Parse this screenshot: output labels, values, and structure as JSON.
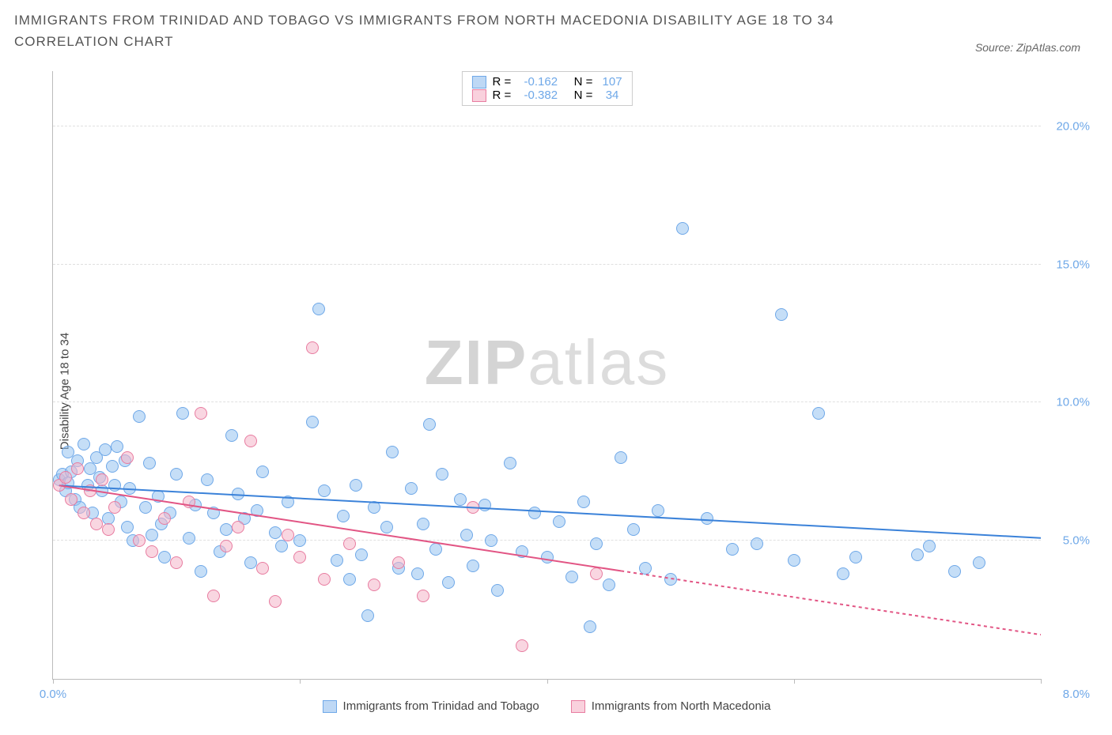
{
  "title": "IMMIGRANTS FROM TRINIDAD AND TOBAGO VS IMMIGRANTS FROM NORTH MACEDONIA DISABILITY AGE 18 TO 34 CORRELATION CHART",
  "source": "Source: ZipAtlas.com",
  "ylabel": "Disability Age 18 to 34",
  "watermark_bold": "ZIP",
  "watermark_light": "atlas",
  "chart": {
    "type": "scatter",
    "background_color": "#ffffff",
    "grid_color": "#e0e0e0",
    "axis_color": "#bbbbbb",
    "text_color": "#555555",
    "tick_label_color": "#6fa8e8",
    "xlim": [
      0,
      8
    ],
    "ylim": [
      0,
      22
    ],
    "xticks": [
      0,
      2,
      4,
      6,
      8
    ],
    "xtick_labels": [
      "0.0%",
      "",
      "",
      "",
      "8.0%"
    ],
    "yticks": [
      5,
      10,
      15,
      20
    ],
    "ytick_labels": [
      "5.0%",
      "10.0%",
      "15.0%",
      "20.0%"
    ],
    "point_radius": 8,
    "series": [
      {
        "name": "Immigrants from Trinidad and Tobago",
        "color_fill": "rgba(150,195,240,0.55)",
        "color_stroke": "#6fa8e8",
        "R": "-0.162",
        "N": "107",
        "trend": {
          "x1": 0.05,
          "y1": 7.0,
          "x2": 8.0,
          "y2": 5.1,
          "solid_to_x": 8.0,
          "color": "#3b82d9",
          "width": 2
        },
        "points": [
          [
            0.05,
            7.2
          ],
          [
            0.08,
            7.4
          ],
          [
            0.1,
            6.8
          ],
          [
            0.12,
            8.2
          ],
          [
            0.12,
            7.1
          ],
          [
            0.15,
            7.5
          ],
          [
            0.18,
            6.5
          ],
          [
            0.2,
            7.9
          ],
          [
            0.22,
            6.2
          ],
          [
            0.25,
            8.5
          ],
          [
            0.28,
            7.0
          ],
          [
            0.3,
            7.6
          ],
          [
            0.32,
            6.0
          ],
          [
            0.35,
            8.0
          ],
          [
            0.38,
            7.3
          ],
          [
            0.4,
            6.8
          ],
          [
            0.42,
            8.3
          ],
          [
            0.45,
            5.8
          ],
          [
            0.48,
            7.7
          ],
          [
            0.5,
            7.0
          ],
          [
            0.52,
            8.4
          ],
          [
            0.55,
            6.4
          ],
          [
            0.58,
            7.9
          ],
          [
            0.6,
            5.5
          ],
          [
            0.62,
            6.9
          ],
          [
            0.65,
            5.0
          ],
          [
            0.7,
            9.5
          ],
          [
            0.75,
            6.2
          ],
          [
            0.78,
            7.8
          ],
          [
            0.8,
            5.2
          ],
          [
            0.85,
            6.6
          ],
          [
            0.88,
            5.6
          ],
          [
            0.9,
            4.4
          ],
          [
            0.95,
            6.0
          ],
          [
            1.0,
            7.4
          ],
          [
            1.05,
            9.6
          ],
          [
            1.1,
            5.1
          ],
          [
            1.15,
            6.3
          ],
          [
            1.2,
            3.9
          ],
          [
            1.25,
            7.2
          ],
          [
            1.3,
            6.0
          ],
          [
            1.35,
            4.6
          ],
          [
            1.4,
            5.4
          ],
          [
            1.45,
            8.8
          ],
          [
            1.5,
            6.7
          ],
          [
            1.55,
            5.8
          ],
          [
            1.6,
            4.2
          ],
          [
            1.65,
            6.1
          ],
          [
            1.7,
            7.5
          ],
          [
            1.8,
            5.3
          ],
          [
            1.85,
            4.8
          ],
          [
            1.9,
            6.4
          ],
          [
            2.0,
            5.0
          ],
          [
            2.1,
            9.3
          ],
          [
            2.15,
            13.4
          ],
          [
            2.2,
            6.8
          ],
          [
            2.3,
            4.3
          ],
          [
            2.35,
            5.9
          ],
          [
            2.4,
            3.6
          ],
          [
            2.45,
            7.0
          ],
          [
            2.5,
            4.5
          ],
          [
            2.55,
            2.3
          ],
          [
            2.6,
            6.2
          ],
          [
            2.7,
            5.5
          ],
          [
            2.75,
            8.2
          ],
          [
            2.8,
            4.0
          ],
          [
            2.9,
            6.9
          ],
          [
            2.95,
            3.8
          ],
          [
            3.0,
            5.6
          ],
          [
            3.05,
            9.2
          ],
          [
            3.1,
            4.7
          ],
          [
            3.15,
            7.4
          ],
          [
            3.2,
            3.5
          ],
          [
            3.3,
            6.5
          ],
          [
            3.35,
            5.2
          ],
          [
            3.4,
            4.1
          ],
          [
            3.5,
            6.3
          ],
          [
            3.55,
            5.0
          ],
          [
            3.6,
            3.2
          ],
          [
            3.7,
            7.8
          ],
          [
            3.8,
            4.6
          ],
          [
            3.9,
            6.0
          ],
          [
            4.0,
            4.4
          ],
          [
            4.1,
            5.7
          ],
          [
            4.2,
            3.7
          ],
          [
            4.3,
            6.4
          ],
          [
            4.35,
            1.9
          ],
          [
            4.4,
            4.9
          ],
          [
            4.5,
            3.4
          ],
          [
            4.6,
            8.0
          ],
          [
            4.7,
            5.4
          ],
          [
            4.8,
            4.0
          ],
          [
            4.9,
            6.1
          ],
          [
            5.0,
            3.6
          ],
          [
            5.1,
            16.3
          ],
          [
            5.3,
            5.8
          ],
          [
            5.5,
            4.7
          ],
          [
            5.7,
            4.9
          ],
          [
            5.9,
            13.2
          ],
          [
            6.0,
            4.3
          ],
          [
            6.2,
            9.6
          ],
          [
            6.4,
            3.8
          ],
          [
            6.5,
            4.4
          ],
          [
            7.0,
            4.5
          ],
          [
            7.1,
            4.8
          ],
          [
            7.3,
            3.9
          ],
          [
            7.5,
            4.2
          ]
        ]
      },
      {
        "name": "Immigrants from North Macedonia",
        "color_fill": "rgba(244,180,200,0.55)",
        "color_stroke": "#e87ca0",
        "R": "-0.382",
        "N": "34",
        "trend": {
          "x1": 0.05,
          "y1": 7.0,
          "x2": 8.0,
          "y2": 1.6,
          "solid_to_x": 4.6,
          "color": "#e25584",
          "width": 2
        },
        "points": [
          [
            0.05,
            7.0
          ],
          [
            0.1,
            7.3
          ],
          [
            0.15,
            6.5
          ],
          [
            0.2,
            7.6
          ],
          [
            0.25,
            6.0
          ],
          [
            0.3,
            6.8
          ],
          [
            0.35,
            5.6
          ],
          [
            0.4,
            7.2
          ],
          [
            0.45,
            5.4
          ],
          [
            0.5,
            6.2
          ],
          [
            0.6,
            8.0
          ],
          [
            0.7,
            5.0
          ],
          [
            0.8,
            4.6
          ],
          [
            0.9,
            5.8
          ],
          [
            1.0,
            4.2
          ],
          [
            1.1,
            6.4
          ],
          [
            1.2,
            9.6
          ],
          [
            1.3,
            3.0
          ],
          [
            1.4,
            4.8
          ],
          [
            1.5,
            5.5
          ],
          [
            1.6,
            8.6
          ],
          [
            1.7,
            4.0
          ],
          [
            1.8,
            2.8
          ],
          [
            1.9,
            5.2
          ],
          [
            2.0,
            4.4
          ],
          [
            2.1,
            12.0
          ],
          [
            2.2,
            3.6
          ],
          [
            2.4,
            4.9
          ],
          [
            2.6,
            3.4
          ],
          [
            2.8,
            4.2
          ],
          [
            3.0,
            3.0
          ],
          [
            3.4,
            6.2
          ],
          [
            3.8,
            1.2
          ],
          [
            4.4,
            3.8
          ]
        ]
      }
    ],
    "bottom_legend": [
      {
        "swatch": "blue",
        "label": "Immigrants from Trinidad and Tobago"
      },
      {
        "swatch": "pink",
        "label": "Immigrants from North Macedonia"
      }
    ]
  }
}
